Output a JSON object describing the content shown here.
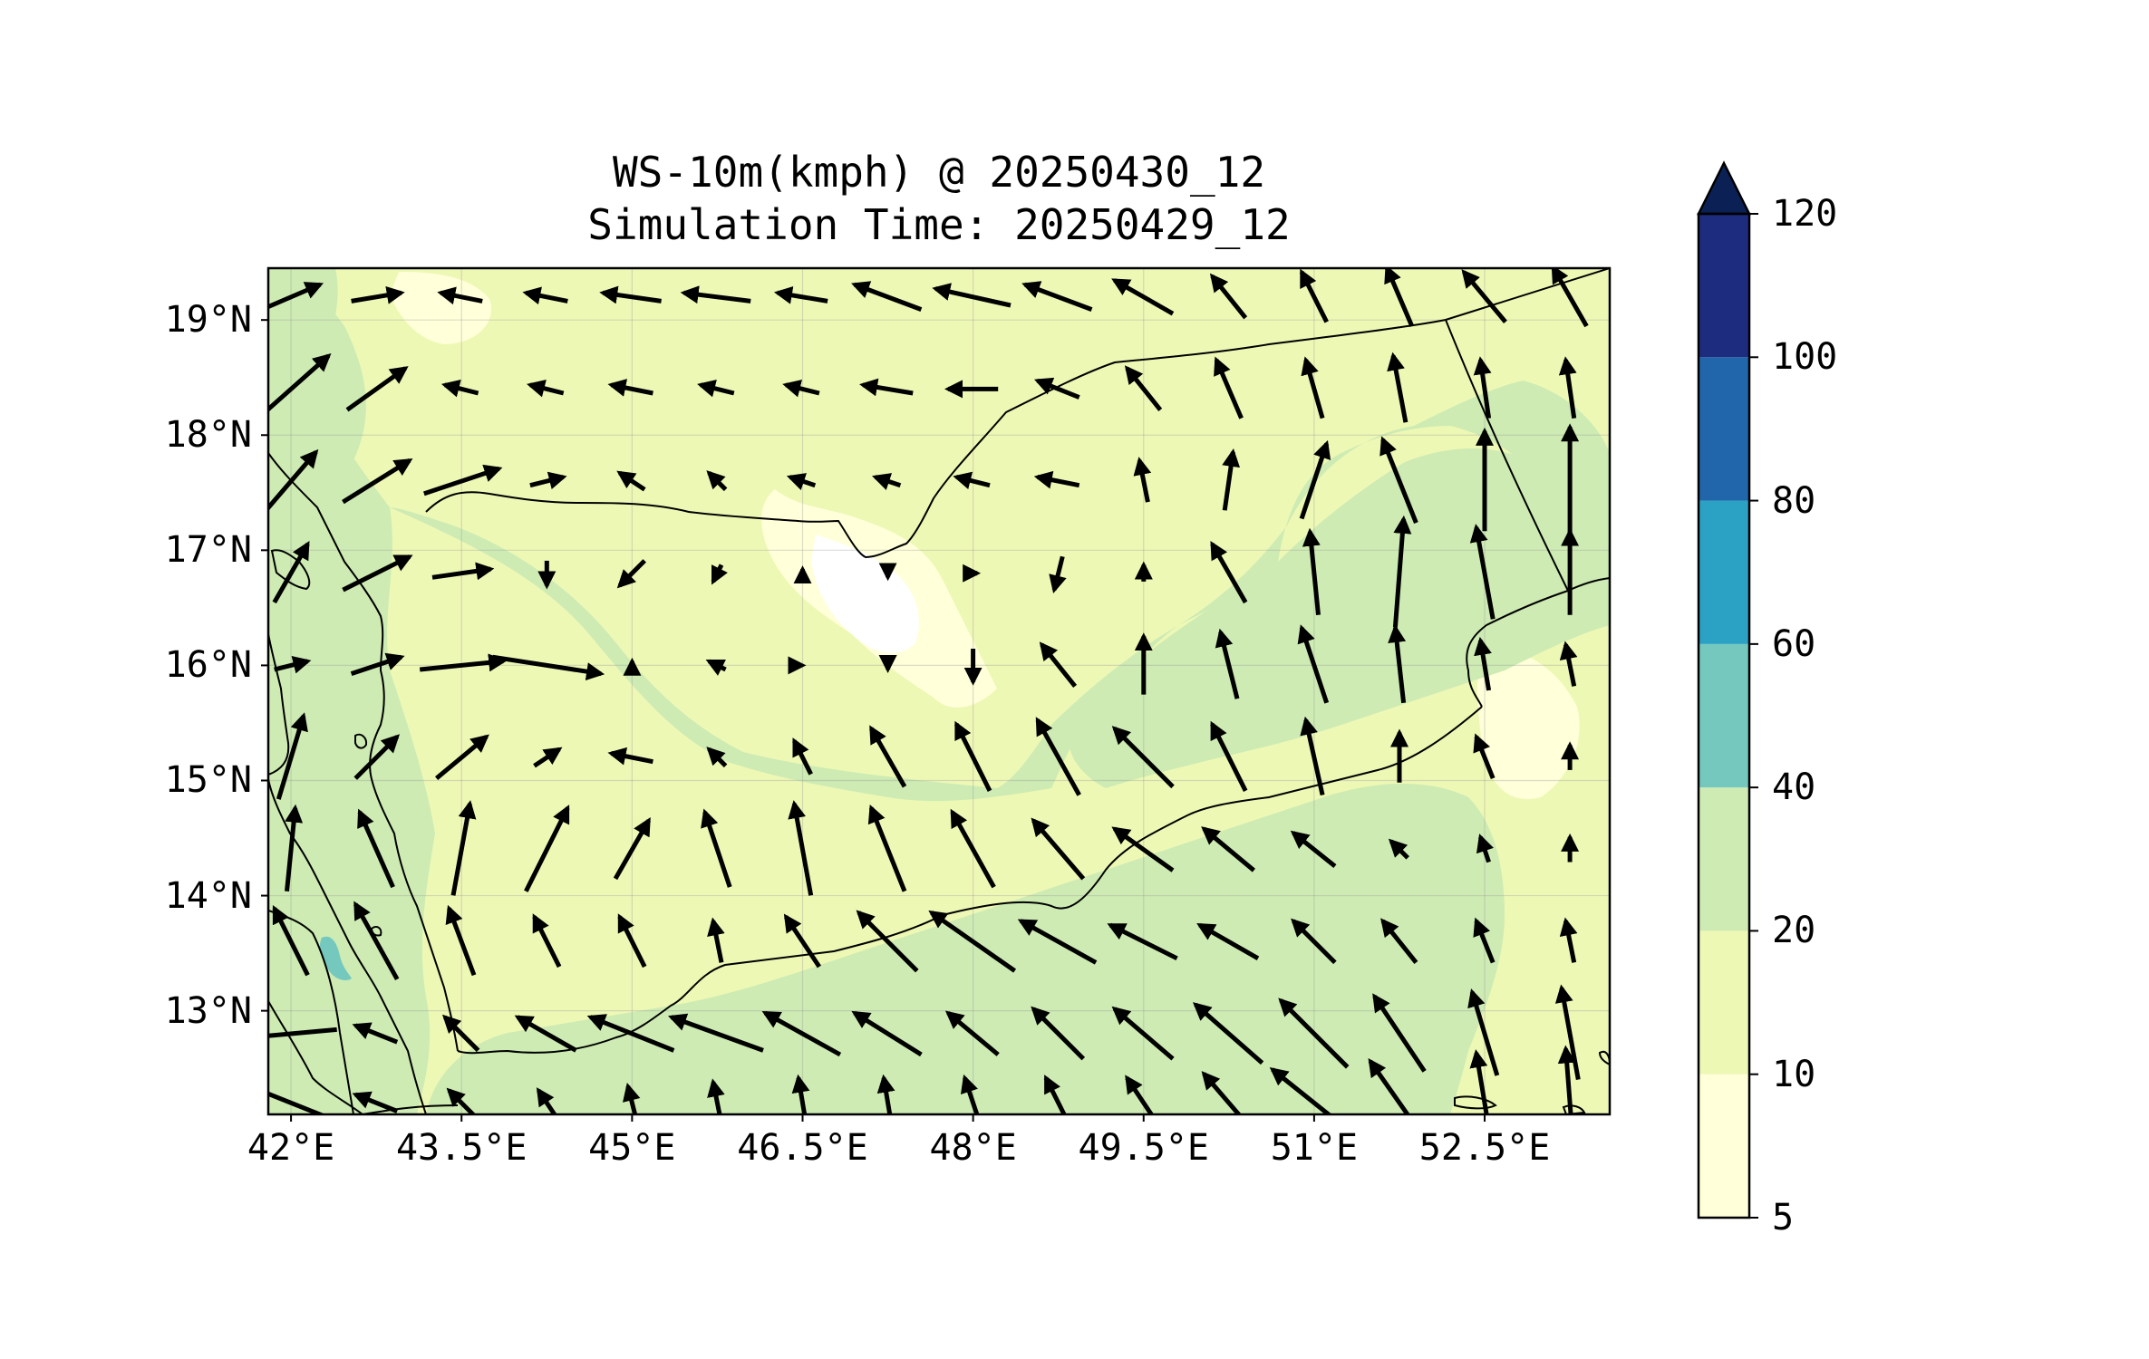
{
  "title": {
    "line1": "WS-10m(kmph) @ 20250430_12",
    "line2": "Simulation Time: 20250429_12"
  },
  "axes": {
    "lon_range": [
      41.8,
      53.6
    ],
    "lat_range": [
      12.1,
      19.45
    ],
    "lon_ticks": [
      {
        "value": 42.0,
        "label": "42°E"
      },
      {
        "value": 43.5,
        "label": "43.5°E"
      },
      {
        "value": 45.0,
        "label": "45°E"
      },
      {
        "value": 46.5,
        "label": "46.5°E"
      },
      {
        "value": 48.0,
        "label": "48°E"
      },
      {
        "value": 49.5,
        "label": "49.5°E"
      },
      {
        "value": 51.0,
        "label": "51°E"
      },
      {
        "value": 52.5,
        "label": "52.5°E"
      }
    ],
    "lat_ticks": [
      {
        "value": 19,
        "label": "19°N"
      },
      {
        "value": 18,
        "label": "18°N"
      },
      {
        "value": 17,
        "label": "17°N"
      },
      {
        "value": 16,
        "label": "16°N"
      },
      {
        "value": 15,
        "label": "15°N"
      },
      {
        "value": 14,
        "label": "14°N"
      },
      {
        "value": 13,
        "label": "13°N"
      }
    ],
    "grid": true
  },
  "colorbar": {
    "extend": "max",
    "extend_color": "#0b2155",
    "levels": [
      {
        "value": 5,
        "label": "5"
      },
      {
        "value": 10,
        "label": "10"
      },
      {
        "value": 20,
        "label": "20"
      },
      {
        "value": 40,
        "label": "40"
      },
      {
        "value": 60,
        "label": "60"
      },
      {
        "value": 80,
        "label": "80"
      },
      {
        "value": 100,
        "label": "100"
      },
      {
        "value": 120,
        "label": "120"
      }
    ],
    "colors": [
      "#ffffd9",
      "#eef8b5",
      "#cdebb3",
      "#74c8be",
      "#2ba1c4",
      "#2165ab",
      "#1e2c80"
    ]
  },
  "wind_field": {
    "lons": [
      42.0,
      42.75,
      43.5,
      44.25,
      45.0,
      45.75,
      46.5,
      47.25,
      48.0,
      48.75,
      49.5,
      50.25,
      51.0,
      51.75,
      52.5,
      53.25
    ],
    "lats": [
      19.2,
      18.4,
      17.6,
      16.8,
      16.0,
      15.2,
      14.4,
      13.6,
      12.8,
      12.2
    ],
    "u": [
      [
        14,
        12,
        -10,
        -10,
        -14,
        -16,
        -12,
        -16,
        -18,
        -16,
        -14,
        -8,
        -6,
        -6,
        -10,
        -8
      ],
      [
        18,
        14,
        -8,
        -8,
        -10,
        -8,
        -8,
        -12,
        -12,
        -10,
        -8,
        -6,
        -4,
        -3,
        -2,
        -2
      ],
      [
        12,
        16,
        18,
        8,
        -6,
        -4,
        -6,
        -6,
        -8,
        -10,
        -2,
        2,
        6,
        -8,
        0,
        0
      ],
      [
        8,
        16,
        14,
        0,
        -6,
        -2,
        0,
        0,
        2,
        -2,
        0,
        -8,
        -2,
        2,
        -4,
        0
      ],
      [
        8,
        12,
        20,
        26,
        0,
        -4,
        0,
        0,
        0,
        -8,
        0,
        -4,
        -6,
        -2,
        -2,
        -2
      ],
      [
        6,
        10,
        12,
        6,
        -10,
        -4,
        -4,
        -8,
        -8,
        -10,
        -14,
        -8,
        -4,
        0,
        -4,
        0
      ],
      [
        2,
        -8,
        4,
        10,
        8,
        -6,
        -4,
        -8,
        -10,
        -12,
        -14,
        -12,
        -10,
        -4,
        -2,
        0
      ],
      [
        -8,
        -10,
        -6,
        -6,
        -6,
        -2,
        -8,
        -14,
        -20,
        -18,
        -16,
        -14,
        -10,
        -8,
        -4,
        -2
      ],
      [
        -22,
        -10,
        -8,
        -14,
        -20,
        -22,
        -18,
        -16,
        -12,
        -12,
        -14,
        -16,
        -16,
        -12,
        -6,
        -4
      ],
      [
        -20,
        -10,
        -6,
        -4,
        -2,
        -2,
        -2,
        -2,
        -4,
        -6,
        -8,
        -12,
        -20,
        -14,
        -4,
        -2
      ]
    ],
    "v": [
      [
        6,
        2,
        2,
        2,
        2,
        2,
        2,
        6,
        4,
        6,
        8,
        10,
        12,
        14,
        12,
        14
      ],
      [
        16,
        10,
        2,
        2,
        2,
        2,
        2,
        2,
        0,
        4,
        10,
        14,
        14,
        16,
        14,
        14
      ],
      [
        14,
        10,
        6,
        2,
        4,
        4,
        2,
        2,
        2,
        2,
        10,
        14,
        18,
        20,
        24,
        26
      ],
      [
        14,
        8,
        2,
        -6,
        -6,
        -4,
        2,
        -2,
        0,
        -8,
        4,
        14,
        20,
        26,
        22,
        20
      ],
      [
        2,
        4,
        2,
        -4,
        2,
        2,
        0,
        -2,
        -8,
        10,
        14,
        16,
        18,
        18,
        12,
        10
      ],
      [
        20,
        10,
        10,
        4,
        2,
        4,
        8,
        14,
        16,
        18,
        14,
        16,
        18,
        12,
        10,
        6
      ],
      [
        20,
        18,
        22,
        20,
        14,
        18,
        22,
        20,
        18,
        14,
        10,
        10,
        8,
        4,
        6,
        6
      ],
      [
        16,
        18,
        16,
        12,
        12,
        10,
        12,
        14,
        14,
        10,
        8,
        8,
        10,
        10,
        10,
        10
      ],
      [
        -2,
        4,
        8,
        8,
        8,
        8,
        10,
        10,
        10,
        12,
        12,
        14,
        16,
        18,
        20,
        22
      ],
      [
        8,
        4,
        6,
        6,
        8,
        10,
        12,
        12,
        12,
        12,
        12,
        14,
        16,
        20,
        24,
        26
      ]
    ]
  }
}
